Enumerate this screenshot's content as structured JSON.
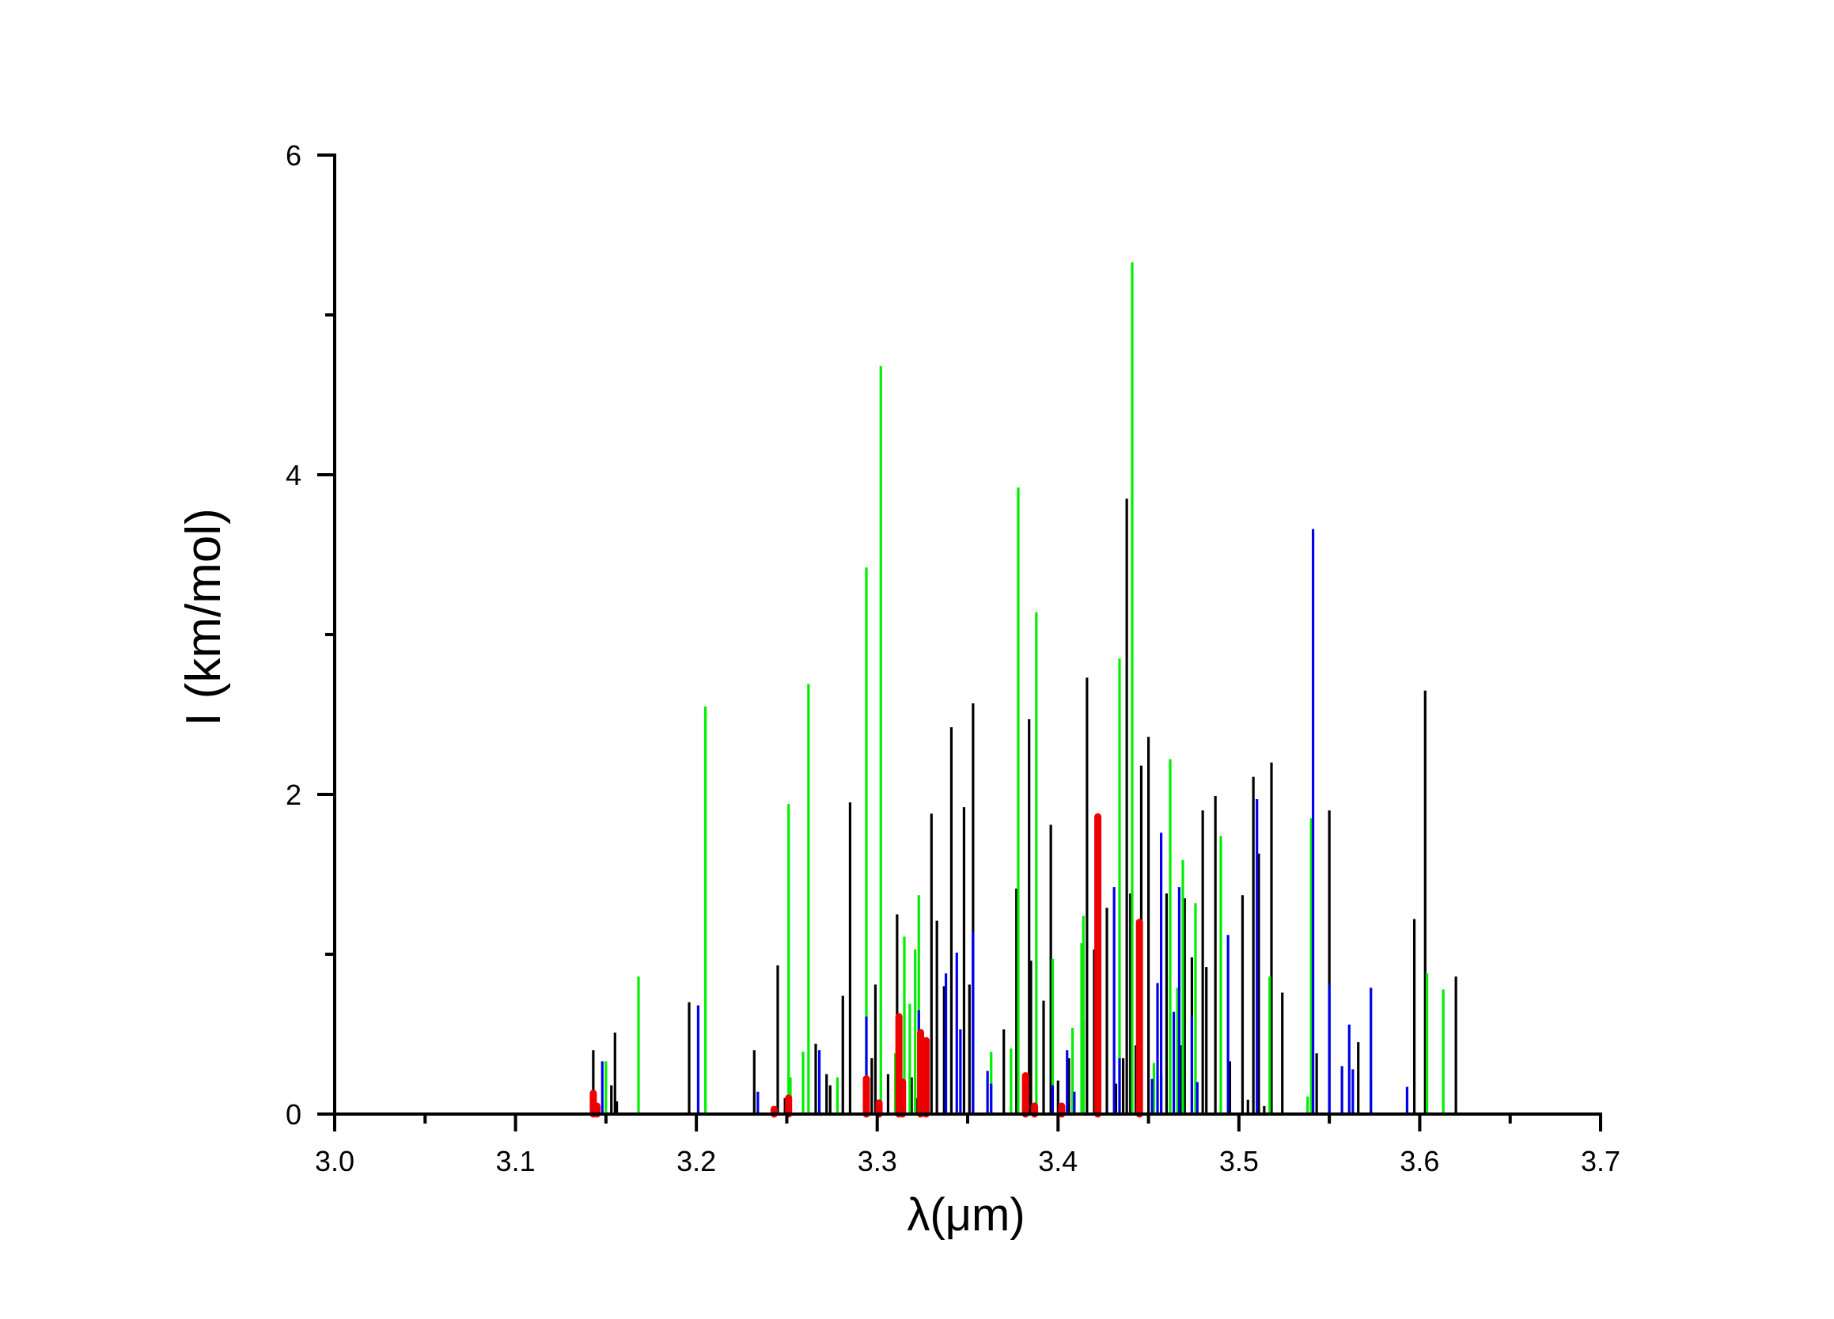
{
  "chart_data": {
    "type": "bar",
    "style": "stick-spectrum",
    "xlabel": "λ(μm)",
    "ylabel": "I (km/mol)",
    "xlim": [
      3.0,
      3.7
    ],
    "ylim": [
      0,
      6
    ],
    "x_ticks": [
      "3.0",
      "3.1",
      "3.2",
      "3.3",
      "3.4",
      "3.5",
      "3.6",
      "3.7"
    ],
    "y_ticks": [
      "0",
      "2",
      "4",
      "6"
    ],
    "grid": false,
    "legend": "none",
    "series": [
      {
        "color": "#000000",
        "points": [
          [
            3.143,
            0.4
          ],
          [
            3.153,
            0.18
          ],
          [
            3.155,
            0.51
          ],
          [
            3.156,
            0.08
          ],
          [
            3.196,
            0.7
          ],
          [
            3.232,
            0.4
          ],
          [
            3.245,
            0.93
          ],
          [
            3.249,
            0.1
          ],
          [
            3.266,
            0.44
          ],
          [
            3.272,
            0.25
          ],
          [
            3.274,
            0.18
          ],
          [
            3.281,
            0.74
          ],
          [
            3.285,
            1.95
          ],
          [
            3.297,
            0.35
          ],
          [
            3.299,
            0.81
          ],
          [
            3.306,
            0.25
          ],
          [
            3.311,
            1.25
          ],
          [
            3.319,
            0.23
          ],
          [
            3.322,
            0.1
          ],
          [
            3.33,
            1.88
          ],
          [
            3.333,
            1.21
          ],
          [
            3.337,
            0.8
          ],
          [
            3.341,
            2.42
          ],
          [
            3.348,
            1.92
          ],
          [
            3.351,
            0.81
          ],
          [
            3.353,
            2.57
          ],
          [
            3.37,
            0.53
          ],
          [
            3.377,
            1.41
          ],
          [
            3.384,
            2.47
          ],
          [
            3.385,
            0.96
          ],
          [
            3.388,
            0.08
          ],
          [
            3.392,
            0.71
          ],
          [
            3.396,
            1.81
          ],
          [
            3.4,
            0.21
          ],
          [
            3.406,
            0.35
          ],
          [
            3.414,
            0.59
          ],
          [
            3.416,
            2.73
          ],
          [
            3.42,
            1.03
          ],
          [
            3.423,
            0.14
          ],
          [
            3.427,
            1.29
          ],
          [
            3.432,
            0.19
          ],
          [
            3.436,
            0.35
          ],
          [
            3.438,
            3.85
          ],
          [
            3.44,
            1.38
          ],
          [
            3.443,
            0.43
          ],
          [
            3.446,
            2.18
          ],
          [
            3.45,
            2.36
          ],
          [
            3.457,
            0.25
          ],
          [
            3.46,
            1.38
          ],
          [
            3.468,
            0.43
          ],
          [
            3.47,
            1.35
          ],
          [
            3.474,
            0.98
          ],
          [
            3.48,
            1.9
          ],
          [
            3.482,
            0.92
          ],
          [
            3.487,
            1.99
          ],
          [
            3.495,
            0.33
          ],
          [
            3.502,
            1.37
          ],
          [
            3.505,
            0.09
          ],
          [
            3.508,
            2.11
          ],
          [
            3.511,
            1.63
          ],
          [
            3.514,
            0.05
          ],
          [
            3.518,
            2.2
          ],
          [
            3.524,
            0.76
          ],
          [
            3.543,
            0.38
          ],
          [
            3.55,
            1.9
          ],
          [
            3.566,
            0.45
          ],
          [
            3.597,
            1.22
          ],
          [
            3.603,
            2.65
          ],
          [
            3.62,
            0.86
          ]
        ]
      },
      {
        "color": "#00ee00",
        "points": [
          [
            3.15,
            0.33
          ],
          [
            3.168,
            0.86
          ],
          [
            3.205,
            2.55
          ],
          [
            3.251,
            1.94
          ],
          [
            3.252,
            0.23
          ],
          [
            3.259,
            0.39
          ],
          [
            3.262,
            2.69
          ],
          [
            3.278,
            0.23
          ],
          [
            3.294,
            3.42
          ],
          [
            3.302,
            4.68
          ],
          [
            3.31,
            0.38
          ],
          [
            3.315,
            1.11
          ],
          [
            3.318,
            0.69
          ],
          [
            3.321,
            1.03
          ],
          [
            3.323,
            1.37
          ],
          [
            3.363,
            0.39
          ],
          [
            3.374,
            0.41
          ],
          [
            3.378,
            3.92
          ],
          [
            3.388,
            3.14
          ],
          [
            3.397,
            0.97
          ],
          [
            3.408,
            0.54
          ],
          [
            3.413,
            1.07
          ],
          [
            3.414,
            1.24
          ],
          [
            3.434,
            2.85
          ],
          [
            3.441,
            5.33
          ],
          [
            3.453,
            0.32
          ],
          [
            3.462,
            2.22
          ],
          [
            3.466,
            0.79
          ],
          [
            3.469,
            1.59
          ],
          [
            3.476,
            1.32
          ],
          [
            3.49,
            1.74
          ],
          [
            3.517,
            0.86
          ],
          [
            3.538,
            0.11
          ],
          [
            3.54,
            1.85
          ],
          [
            3.573,
            0.21
          ],
          [
            3.604,
            0.88
          ],
          [
            3.613,
            0.78
          ]
        ]
      },
      {
        "color": "#0000ee",
        "points": [
          [
            3.148,
            0.33
          ],
          [
            3.201,
            0.68
          ],
          [
            3.234,
            0.14
          ],
          [
            3.268,
            0.4
          ],
          [
            3.294,
            0.61
          ],
          [
            3.323,
            0.65
          ],
          [
            3.326,
            0.37
          ],
          [
            3.338,
            0.88
          ],
          [
            3.344,
            1.01
          ],
          [
            3.346,
            0.53
          ],
          [
            3.353,
            1.14
          ],
          [
            3.361,
            0.27
          ],
          [
            3.363,
            0.19
          ],
          [
            3.381,
            0.19
          ],
          [
            3.397,
            0.18
          ],
          [
            3.405,
            0.4
          ],
          [
            3.409,
            0.14
          ],
          [
            3.431,
            1.42
          ],
          [
            3.434,
            0.35
          ],
          [
            3.444,
            0.57
          ],
          [
            3.452,
            0.22
          ],
          [
            3.455,
            0.82
          ],
          [
            3.457,
            1.76
          ],
          [
            3.464,
            0.64
          ],
          [
            3.467,
            1.42
          ],
          [
            3.474,
            0.61
          ],
          [
            3.477,
            0.2
          ],
          [
            3.494,
            1.12
          ],
          [
            3.51,
            1.97
          ],
          [
            3.541,
            3.66
          ],
          [
            3.55,
            0.81
          ],
          [
            3.557,
            0.3
          ],
          [
            3.561,
            0.56
          ],
          [
            3.563,
            0.28
          ],
          [
            3.573,
            0.79
          ],
          [
            3.593,
            0.17
          ]
        ]
      },
      {
        "color": "#ee0000",
        "width": "thick",
        "points": [
          [
            3.143,
            0.13
          ],
          [
            3.145,
            0.05
          ],
          [
            3.243,
            0.03
          ],
          [
            3.251,
            0.1
          ],
          [
            3.294,
            0.22
          ],
          [
            3.301,
            0.07
          ],
          [
            3.312,
            0.61
          ],
          [
            3.314,
            0.2
          ],
          [
            3.324,
            0.51
          ],
          [
            3.327,
            0.46
          ],
          [
            3.382,
            0.24
          ],
          [
            3.387,
            0.05
          ],
          [
            3.402,
            0.05
          ],
          [
            3.422,
            1.86
          ],
          [
            3.445,
            1.2
          ]
        ]
      }
    ]
  }
}
